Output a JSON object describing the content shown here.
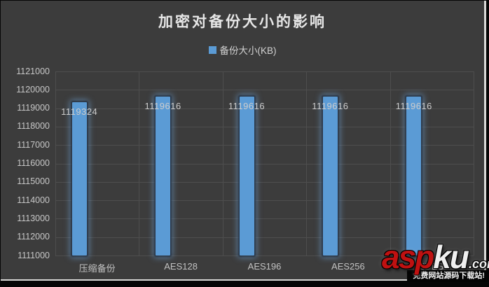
{
  "chart_data": {
    "type": "bar",
    "title": "加密对备份大小的影响",
    "series_name": "备份大小(KB)",
    "categories": [
      "压缩备份",
      "AES128",
      "AES196",
      "AES256",
      "3DES"
    ],
    "values": [
      1119324,
      1119616,
      1119616,
      1119616,
      1119616
    ],
    "data_labels": [
      "1119324",
      "1119616",
      "1119616",
      "1119616",
      "1119616"
    ],
    "ylim": [
      1111000,
      1121000
    ],
    "ytick_step": 1000,
    "grid": true,
    "legend_position": "top",
    "xlabel": "",
    "ylabel": ""
  },
  "legend": {
    "label": "备份大小(KB)",
    "marker_color": "#5b9bd5"
  },
  "colors": {
    "chart_background": "#3c3c3c",
    "gridline": "#4e4e4e",
    "axis_text": "#c7c7c7",
    "title_text": "#e7e7e7",
    "bar_fill": "#5b9bd5",
    "bar_glow": "#7db9f5",
    "watermark_red": "#bf1111",
    "watermark_white": "#efefef"
  },
  "watermark": {
    "brand_part1": "asp",
    "brand_part2": "ku",
    "brand_suffix": ".com",
    "tagline": "免费网站源码下载站!"
  }
}
